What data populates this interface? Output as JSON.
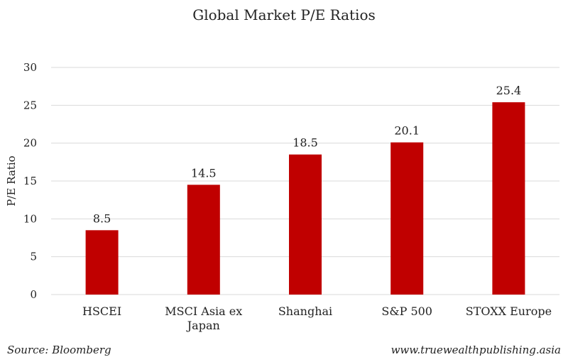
{
  "chart_data": {
    "type": "bar",
    "title": "Global Market P/E Ratios",
    "xlabel": "",
    "ylabel": "P/E Ratio",
    "ylim": [
      0,
      30
    ],
    "yticks": [
      "0",
      "5",
      "10",
      "15",
      "20",
      "25",
      "30"
    ],
    "categories": [
      [
        "HSCEI"
      ],
      [
        "MSCI Asia ex",
        "Japan"
      ],
      [
        "Shanghai"
      ],
      [
        "S&P 500"
      ],
      [
        "STOXX Europe"
      ]
    ],
    "values": [
      8.5,
      14.5,
      18.5,
      20.1,
      25.4
    ],
    "data_labels": [
      "8.5",
      "14.5",
      "18.5",
      "20.1",
      "25.4"
    ],
    "bar_color": "#c00000",
    "grid": true,
    "legend": "none"
  },
  "footer": {
    "source": "Source: Bloomberg",
    "website": "www.truewealthpublishing.asia"
  }
}
